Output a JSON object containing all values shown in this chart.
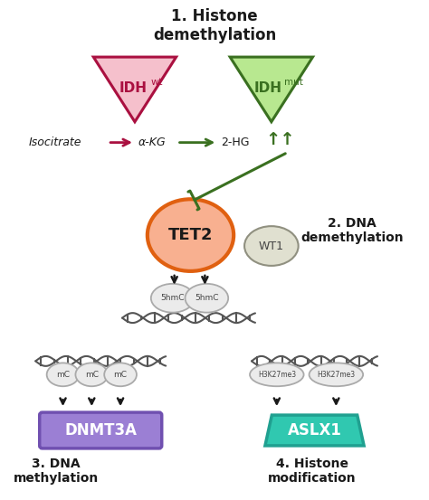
{
  "title": "1. Histone\ndemethylation",
  "title_fontsize": 12,
  "bg_color": "#ffffff",
  "idh_wt_fill": "#f5c0cc",
  "idh_wt_edge": "#aa1040",
  "idh_mut_fill": "#b8e890",
  "idh_mut_edge": "#3a7020",
  "isocitrate_label": "Isocitrate",
  "akg_label": "α-KG",
  "hg_label": "2-HG",
  "tet2_fill": "#f8b090",
  "tet2_edge": "#e06010",
  "tet2_label": "TET2",
  "wt1_fill": "#e0e0d0",
  "wt1_edge": "#909080",
  "wt1_label": "WT1",
  "section2_label": "2. DNA\ndemethylation",
  "dnmt3a_label": "DNMT3A",
  "dnmt3a_fill": "#9b7fd4",
  "dnmt3a_edge": "#7050b0",
  "aslx1_label": "ASLX1",
  "aslx1_fill": "#30c8b0",
  "aslx1_edge": "#20a090",
  "section3_label": "3. DNA\nmethylation",
  "section4_label": "4. Histone\nmodification",
  "dark_green": "#3a7020",
  "dark_red": "#aa1040",
  "arrow_red": "#aa1040",
  "arrow_green": "#3a7020",
  "text_color": "#1a1a1a",
  "dna_color": "#555555"
}
